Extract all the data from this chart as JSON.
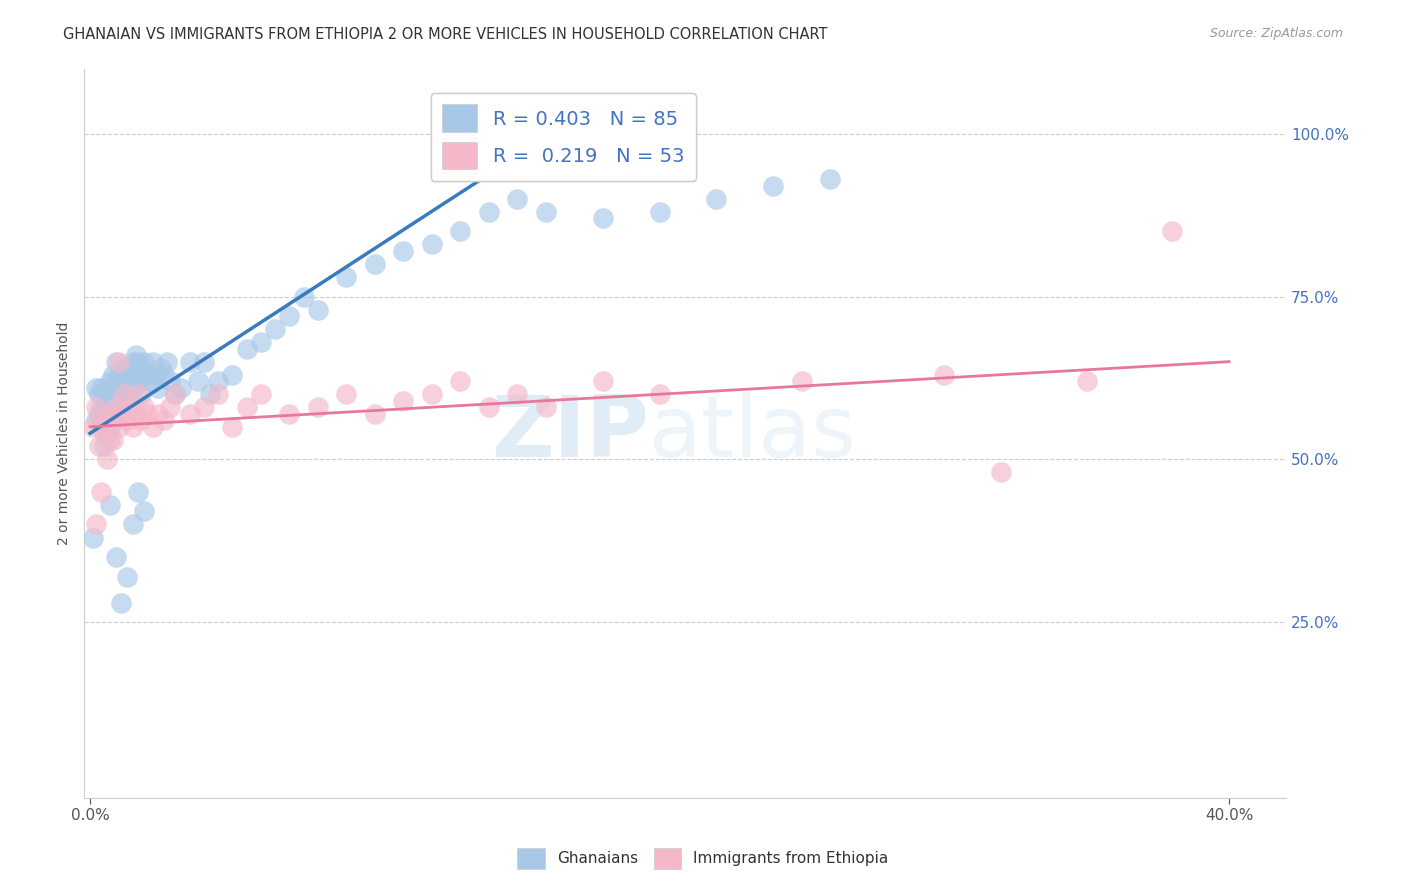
{
  "title": "GHANAIAN VS IMMIGRANTS FROM ETHIOPIA 2 OR MORE VEHICLES IN HOUSEHOLD CORRELATION CHART",
  "source": "Source: ZipAtlas.com",
  "ylabel": "2 or more Vehicles in Household",
  "color_blue": "#a8c8e8",
  "color_pink": "#f5b8c8",
  "line_blue": "#3a7abf",
  "line_pink": "#e8789a",
  "watermark_zip": "ZIP",
  "watermark_atlas": "atlas",
  "xmin": -0.002,
  "xmax": 0.42,
  "ymin": -0.02,
  "ymax": 1.1,
  "ghana_x": [
    0.001,
    0.002,
    0.002,
    0.003,
    0.003,
    0.004,
    0.004,
    0.004,
    0.005,
    0.005,
    0.005,
    0.006,
    0.006,
    0.006,
    0.007,
    0.007,
    0.007,
    0.008,
    0.008,
    0.008,
    0.009,
    0.009,
    0.009,
    0.01,
    0.01,
    0.011,
    0.011,
    0.012,
    0.012,
    0.013,
    0.013,
    0.014,
    0.014,
    0.015,
    0.015,
    0.016,
    0.016,
    0.017,
    0.017,
    0.018,
    0.018,
    0.019,
    0.02,
    0.021,
    0.022,
    0.023,
    0.024,
    0.025,
    0.026,
    0.027,
    0.028,
    0.03,
    0.032,
    0.035,
    0.038,
    0.04,
    0.042,
    0.045,
    0.05,
    0.055,
    0.06,
    0.065,
    0.07,
    0.075,
    0.08,
    0.09,
    0.1,
    0.11,
    0.12,
    0.13,
    0.14,
    0.15,
    0.16,
    0.18,
    0.2,
    0.22,
    0.24,
    0.26,
    0.007,
    0.009,
    0.011,
    0.013,
    0.015,
    0.017,
    0.019
  ],
  "ghana_y": [
    0.38,
    0.56,
    0.61,
    0.57,
    0.6,
    0.55,
    0.58,
    0.61,
    0.52,
    0.57,
    0.6,
    0.54,
    0.58,
    0.61,
    0.55,
    0.59,
    0.62,
    0.56,
    0.6,
    0.63,
    0.58,
    0.62,
    0.65,
    0.57,
    0.6,
    0.59,
    0.63,
    0.61,
    0.64,
    0.6,
    0.63,
    0.58,
    0.62,
    0.61,
    0.65,
    0.63,
    0.66,
    0.62,
    0.65,
    0.6,
    0.63,
    0.65,
    0.63,
    0.62,
    0.65,
    0.63,
    0.61,
    0.64,
    0.63,
    0.65,
    0.62,
    0.6,
    0.61,
    0.65,
    0.62,
    0.65,
    0.6,
    0.62,
    0.63,
    0.67,
    0.68,
    0.7,
    0.72,
    0.75,
    0.73,
    0.78,
    0.8,
    0.82,
    0.83,
    0.85,
    0.88,
    0.9,
    0.88,
    0.87,
    0.88,
    0.9,
    0.92,
    0.93,
    0.43,
    0.35,
    0.28,
    0.32,
    0.4,
    0.45,
    0.42
  ],
  "eth_x": [
    0.001,
    0.002,
    0.003,
    0.004,
    0.005,
    0.006,
    0.007,
    0.008,
    0.009,
    0.01,
    0.011,
    0.012,
    0.013,
    0.014,
    0.015,
    0.016,
    0.017,
    0.018,
    0.019,
    0.02,
    0.022,
    0.024,
    0.026,
    0.028,
    0.03,
    0.035,
    0.04,
    0.045,
    0.05,
    0.055,
    0.06,
    0.07,
    0.08,
    0.09,
    0.1,
    0.11,
    0.12,
    0.13,
    0.14,
    0.15,
    0.16,
    0.18,
    0.2,
    0.25,
    0.3,
    0.32,
    0.35,
    0.38,
    0.002,
    0.004,
    0.006,
    0.008,
    0.01
  ],
  "eth_y": [
    0.55,
    0.58,
    0.52,
    0.56,
    0.54,
    0.57,
    0.53,
    0.56,
    0.58,
    0.55,
    0.57,
    0.6,
    0.56,
    0.58,
    0.55,
    0.57,
    0.6,
    0.56,
    0.58,
    0.57,
    0.55,
    0.57,
    0.56,
    0.58,
    0.6,
    0.57,
    0.58,
    0.6,
    0.55,
    0.58,
    0.6,
    0.57,
    0.58,
    0.6,
    0.57,
    0.59,
    0.6,
    0.62,
    0.58,
    0.6,
    0.58,
    0.62,
    0.6,
    0.62,
    0.63,
    0.48,
    0.62,
    0.85,
    0.4,
    0.45,
    0.5,
    0.53,
    0.65
  ],
  "blue_line_x": [
    0.0,
    0.155
  ],
  "blue_line_y": [
    0.54,
    0.98
  ],
  "pink_line_x": [
    0.0,
    0.4
  ],
  "pink_line_y": [
    0.55,
    0.65
  ]
}
